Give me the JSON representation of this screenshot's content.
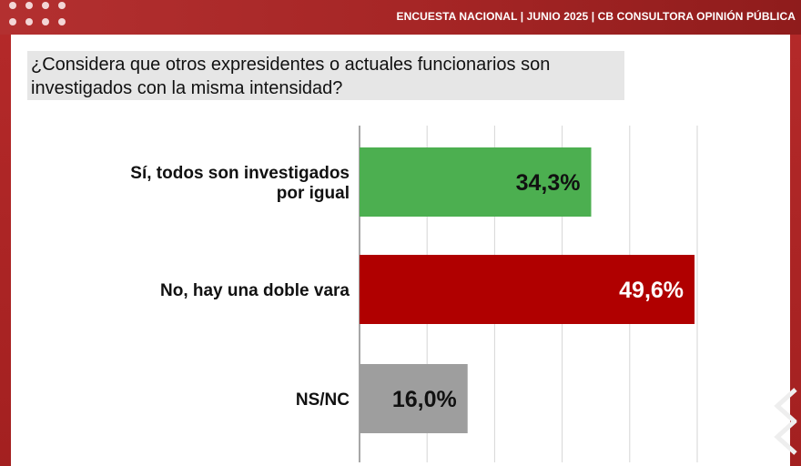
{
  "header": {
    "title": "ENCUESTA NACIONAL | JUNIO 2025 | CB CONSULTORA OPINIÓN PÚBLICA"
  },
  "question": "¿Considera que otros expresidentes o actuales funcionarios son investigados con la misma intensidad?",
  "colors": {
    "header": "#a52525",
    "si": "#4caf50",
    "no": "#b00000",
    "nsnc": "#9e9e9e"
  },
  "chart_data": {
    "type": "bar",
    "orientation": "horizontal",
    "title": "¿Considera que otros expresidentes o actuales funcionarios son investigados con la misma intensidad?",
    "categories": [
      [
        "Sí, todos son investigados",
        "por igual"
      ],
      [
        "No, hay una doble vara"
      ],
      [
        "NS/NC"
      ]
    ],
    "values": [
      34.3,
      49.6,
      16.0
    ],
    "value_labels": [
      "34,3%",
      "49,6%",
      "16,0%"
    ],
    "colors": [
      "#4caf50",
      "#b00000",
      "#9e9e9e"
    ],
    "label_colors": [
      "#111111",
      "#ffffff",
      "#111111"
    ],
    "xlim": [
      0,
      50
    ],
    "grid": true,
    "legend": "none"
  }
}
